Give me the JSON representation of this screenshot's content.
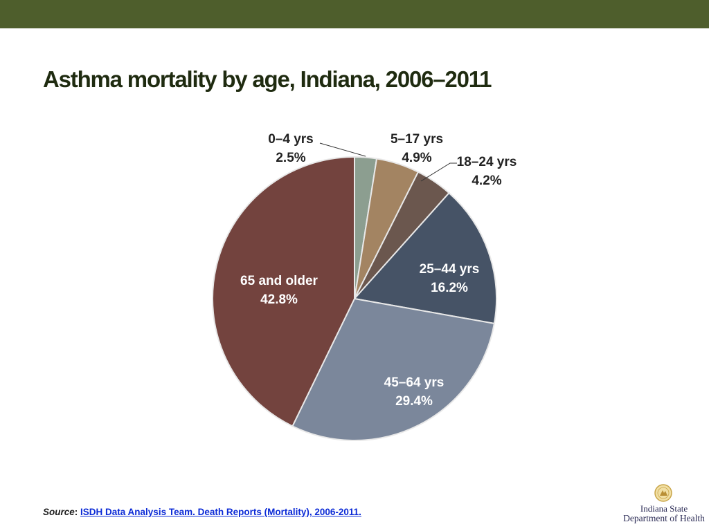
{
  "slide": {
    "title": "Asthma mortality by age, Indiana, 2006–2011"
  },
  "chart_data": {
    "type": "pie",
    "title": "",
    "slices": [
      {
        "label": "0–4 yrs",
        "value": 2.5,
        "value_label": "2.5%",
        "color": "#8c9e90"
      },
      {
        "label": "5–17 yrs",
        "value": 4.9,
        "value_label": "4.9%",
        "color": "#a38462"
      },
      {
        "label": "18–24 yrs",
        "value": 4.2,
        "value_label": "4.2%",
        "color": "#6b574e"
      },
      {
        "label": "25–44 yrs",
        "value": 16.2,
        "value_label": "16.2%",
        "color": "#465366"
      },
      {
        "label": "45–64 yrs",
        "value": 29.4,
        "value_label": "29.4%",
        "color": "#7b879b"
      },
      {
        "label": "65 and older",
        "value": 42.8,
        "value_label": "42.8%",
        "color": "#73433e"
      }
    ],
    "start": "12 o'clock",
    "direction": "clockwise",
    "legend": "none"
  },
  "footer": {
    "source_label": "Source",
    "source_colon": ": ",
    "source_text": "ISDH Data Analysis Team. Death Reports (Mortality), 2006-2011.",
    "logo_line1": "Indiana State",
    "logo_line2": "Department of Health"
  }
}
